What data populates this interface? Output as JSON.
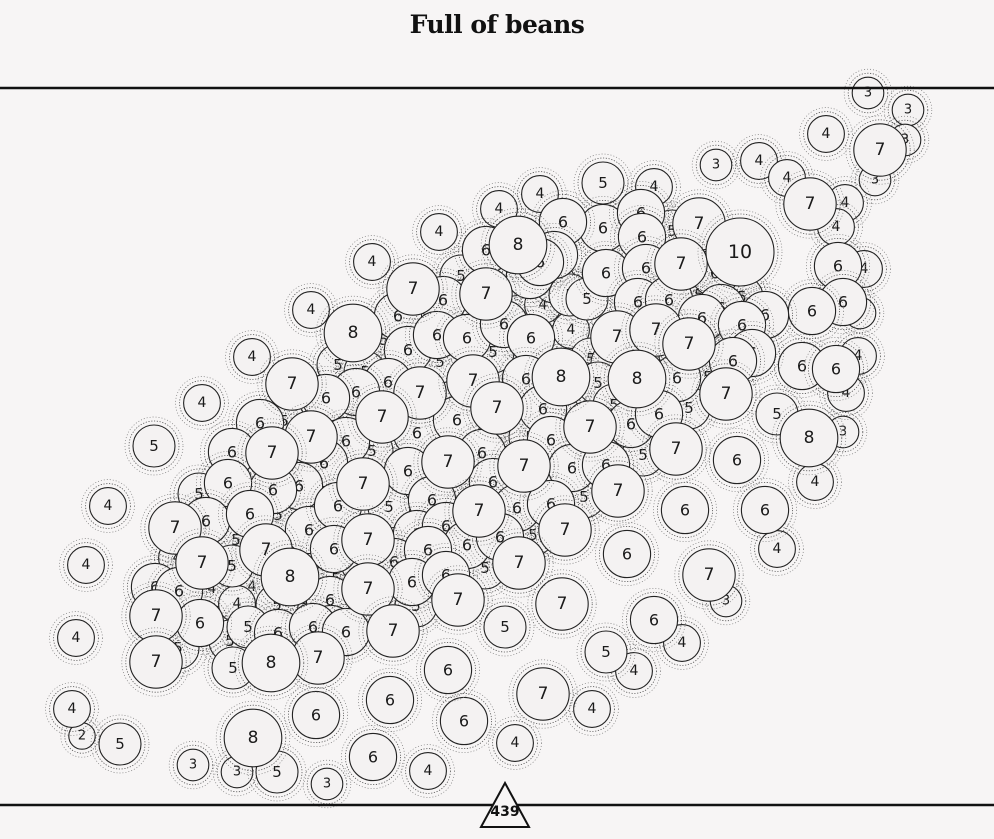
{
  "title": "Full of beans",
  "colors": {
    "background": "#f7f5f5",
    "bean_fill": "#f4f2f2",
    "bean_stroke": "#222222",
    "gap_fill": "#d8c48a",
    "frame": "#111111"
  },
  "chart_data": {
    "type": "scatter",
    "title": "Full of beans",
    "xlabel": "",
    "ylabel": "",
    "grid": false,
    "total": "439",
    "points": [
      [
        868,
        93,
        3
      ],
      [
        908,
        110,
        3
      ],
      [
        826,
        134,
        4
      ],
      [
        880,
        150,
        7
      ],
      [
        905,
        140,
        3
      ],
      [
        875,
        180,
        3
      ],
      [
        716,
        165,
        3
      ],
      [
        759,
        161,
        4
      ],
      [
        787,
        178,
        4
      ],
      [
        810,
        204,
        7
      ],
      [
        845,
        203,
        4
      ],
      [
        836,
        227,
        4
      ],
      [
        838,
        266,
        6
      ],
      [
        864,
        269,
        4
      ],
      [
        843,
        302,
        6
      ],
      [
        812,
        311,
        6
      ],
      [
        860,
        313,
        3
      ],
      [
        858,
        356,
        4
      ],
      [
        802,
        366,
        6
      ],
      [
        836,
        369,
        6
      ],
      [
        846,
        393,
        4
      ],
      [
        843,
        432,
        3
      ],
      [
        777,
        414,
        5
      ],
      [
        809,
        438,
        8
      ],
      [
        815,
        482,
        4
      ],
      [
        737,
        460,
        6
      ],
      [
        765,
        510,
        6
      ],
      [
        777,
        549,
        4
      ],
      [
        709,
        575,
        7
      ],
      [
        726,
        601,
        3
      ],
      [
        654,
        620,
        6
      ],
      [
        682,
        643,
        4
      ],
      [
        606,
        652,
        5
      ],
      [
        634,
        671,
        4
      ],
      [
        685,
        510,
        6
      ],
      [
        627,
        554,
        6
      ],
      [
        562,
        604,
        7
      ],
      [
        505,
        627,
        5
      ],
      [
        543,
        694,
        7
      ],
      [
        592,
        709,
        4
      ],
      [
        464,
        721,
        6
      ],
      [
        515,
        743,
        4
      ],
      [
        448,
        670,
        6
      ],
      [
        428,
        771,
        4
      ],
      [
        373,
        757,
        6
      ],
      [
        390,
        700,
        6
      ],
      [
        316,
        715,
        6
      ],
      [
        327,
        784,
        3
      ],
      [
        253,
        738,
        8
      ],
      [
        237,
        772,
        3
      ],
      [
        277,
        772,
        5
      ],
      [
        193,
        765,
        3
      ],
      [
        120,
        744,
        5
      ],
      [
        82,
        736,
        2
      ],
      [
        72,
        709,
        4
      ],
      [
        76,
        638,
        4
      ],
      [
        86,
        565,
        4
      ],
      [
        108,
        506,
        4
      ],
      [
        154,
        446,
        5
      ],
      [
        202,
        403,
        4
      ],
      [
        252,
        357,
        4
      ],
      [
        311,
        310,
        4
      ],
      [
        372,
        262,
        4
      ],
      [
        439,
        232,
        4
      ],
      [
        499,
        209,
        4
      ],
      [
        540,
        194,
        4
      ],
      [
        603,
        183,
        5
      ],
      [
        654,
        187,
        4
      ],
      [
        699,
        224,
        7
      ],
      [
        740,
        252,
        10
      ],
      [
        603,
        228,
        6
      ],
      [
        563,
        222,
        6
      ],
      [
        641,
        213,
        6
      ],
      [
        518,
        245,
        8
      ],
      [
        642,
        237,
        6
      ],
      [
        672,
        231,
        5
      ],
      [
        700,
        250,
        5
      ],
      [
        486,
        250,
        6
      ],
      [
        554,
        255,
        6
      ],
      [
        681,
        264,
        7
      ],
      [
        606,
        273,
        6
      ],
      [
        646,
        268,
        6
      ],
      [
        715,
        273,
        6
      ],
      [
        530,
        275,
        6
      ],
      [
        492,
        273,
        5
      ],
      [
        513,
        275,
        5
      ],
      [
        461,
        276,
        5
      ],
      [
        540,
        262,
        6
      ],
      [
        554,
        282,
        5
      ],
      [
        570,
        295,
        5
      ],
      [
        413,
        289,
        7
      ],
      [
        443,
        300,
        6
      ],
      [
        486,
        294,
        7
      ],
      [
        587,
        299,
        5
      ],
      [
        638,
        302,
        6
      ],
      [
        669,
        300,
        6
      ],
      [
        699,
        295,
        5
      ],
      [
        721,
        308,
        6
      ],
      [
        742,
        297,
        5
      ],
      [
        702,
        318,
        6
      ],
      [
        715,
        330,
        5
      ],
      [
        543,
        305,
        4
      ],
      [
        566,
        311,
        3
      ],
      [
        765,
        315,
        6
      ],
      [
        742,
        325,
        6
      ],
      [
        464,
        320,
        5
      ],
      [
        398,
        316,
        6
      ],
      [
        353,
        333,
        8
      ],
      [
        384,
        340,
        5
      ],
      [
        408,
        350,
        6
      ],
      [
        437,
        335,
        6
      ],
      [
        467,
        338,
        6
      ],
      [
        504,
        324,
        6
      ],
      [
        531,
        338,
        6
      ],
      [
        571,
        330,
        4
      ],
      [
        617,
        337,
        7
      ],
      [
        656,
        330,
        7
      ],
      [
        689,
        344,
        7
      ],
      [
        752,
        353,
        6
      ],
      [
        733,
        361,
        6
      ],
      [
        338,
        365,
        5
      ],
      [
        365,
        372,
        5
      ],
      [
        388,
        382,
        6
      ],
      [
        440,
        362,
        5
      ],
      [
        493,
        352,
        5
      ],
      [
        591,
        359,
        5
      ],
      [
        612,
        363,
        5
      ],
      [
        636,
        352,
        5
      ],
      [
        659,
        357,
        5
      ],
      [
        680,
        355,
        5
      ],
      [
        292,
        384,
        7
      ],
      [
        356,
        392,
        6
      ],
      [
        420,
        393,
        7
      ],
      [
        473,
        381,
        7
      ],
      [
        526,
        379,
        6
      ],
      [
        561,
        377,
        8
      ],
      [
        598,
        383,
        5
      ],
      [
        614,
        405,
        5
      ],
      [
        637,
        379,
        8
      ],
      [
        677,
        378,
        6
      ],
      [
        708,
        377,
        5
      ],
      [
        726,
        394,
        7
      ],
      [
        284,
        421,
        5
      ],
      [
        326,
        398,
        6
      ],
      [
        339,
        421,
        5
      ],
      [
        311,
        437,
        7
      ],
      [
        346,
        441,
        6
      ],
      [
        382,
        417,
        7
      ],
      [
        417,
        433,
        6
      ],
      [
        457,
        420,
        6
      ],
      [
        497,
        408,
        7
      ],
      [
        543,
        409,
        6
      ],
      [
        562,
        418,
        5
      ],
      [
        590,
        427,
        7
      ],
      [
        631,
        424,
        6
      ],
      [
        659,
        414,
        6
      ],
      [
        689,
        408,
        5
      ],
      [
        260,
        423,
        6
      ],
      [
        272,
        453,
        7
      ],
      [
        232,
        452,
        6
      ],
      [
        295,
        467,
        5
      ],
      [
        324,
        463,
        6
      ],
      [
        372,
        451,
        5
      ],
      [
        448,
        462,
        7
      ],
      [
        482,
        453,
        6
      ],
      [
        504,
        452,
        5
      ],
      [
        524,
        466,
        7
      ],
      [
        551,
        440,
        6
      ],
      [
        530,
        437,
        5
      ],
      [
        572,
        468,
        6
      ],
      [
        606,
        465,
        6
      ],
      [
        643,
        455,
        5
      ],
      [
        676,
        449,
        7
      ],
      [
        408,
        471,
        6
      ],
      [
        363,
        484,
        7
      ],
      [
        299,
        486,
        6
      ],
      [
        273,
        490,
        6
      ],
      [
        228,
        483,
        6
      ],
      [
        199,
        494,
        5
      ],
      [
        206,
        521,
        6
      ],
      [
        175,
        528,
        7
      ],
      [
        250,
        514,
        6
      ],
      [
        278,
        515,
        5
      ],
      [
        309,
        530,
        6
      ],
      [
        338,
        506,
        6
      ],
      [
        389,
        507,
        5
      ],
      [
        432,
        500,
        6
      ],
      [
        451,
        499,
        5
      ],
      [
        472,
        486,
        5
      ],
      [
        493,
        482,
        6
      ],
      [
        479,
        511,
        7
      ],
      [
        517,
        508,
        6
      ],
      [
        551,
        504,
        6
      ],
      [
        584,
        497,
        5
      ],
      [
        618,
        491,
        7
      ],
      [
        236,
        540,
        5
      ],
      [
        266,
        550,
        7
      ],
      [
        334,
        549,
        6
      ],
      [
        368,
        540,
        7
      ],
      [
        417,
        534,
        6
      ],
      [
        446,
        526,
        6
      ],
      [
        467,
        545,
        6
      ],
      [
        500,
        537,
        6
      ],
      [
        533,
        535,
        5
      ],
      [
        565,
        530,
        7
      ],
      [
        177,
        558,
        4
      ],
      [
        202,
        563,
        7
      ],
      [
        232,
        566,
        5
      ],
      [
        290,
        577,
        8
      ],
      [
        336,
        579,
        5
      ],
      [
        362,
        563,
        5
      ],
      [
        394,
        562,
        6
      ],
      [
        428,
        550,
        6
      ],
      [
        485,
        568,
        5
      ],
      [
        519,
        563,
        7
      ],
      [
        155,
        587,
        6
      ],
      [
        179,
        591,
        6
      ],
      [
        212,
        589,
        4
      ],
      [
        252,
        587,
        4
      ],
      [
        305,
        599,
        5
      ],
      [
        330,
        600,
        6
      ],
      [
        368,
        589,
        7
      ],
      [
        412,
        582,
        6
      ],
      [
        446,
        575,
        6
      ],
      [
        156,
        616,
        7
      ],
      [
        200,
        623,
        6
      ],
      [
        237,
        604,
        4
      ],
      [
        277,
        605,
        5
      ],
      [
        331,
        629,
        6
      ],
      [
        382,
        609,
        5
      ],
      [
        416,
        606,
        5
      ],
      [
        458,
        600,
        7
      ],
      [
        178,
        648,
        5
      ],
      [
        230,
        641,
        5
      ],
      [
        248,
        627,
        5
      ],
      [
        278,
        633,
        6
      ],
      [
        313,
        627,
        6
      ],
      [
        346,
        632,
        6
      ],
      [
        393,
        631,
        7
      ],
      [
        156,
        662,
        7
      ],
      [
        233,
        668,
        5
      ],
      [
        271,
        663,
        8
      ],
      [
        318,
        658,
        7
      ]
    ]
  }
}
